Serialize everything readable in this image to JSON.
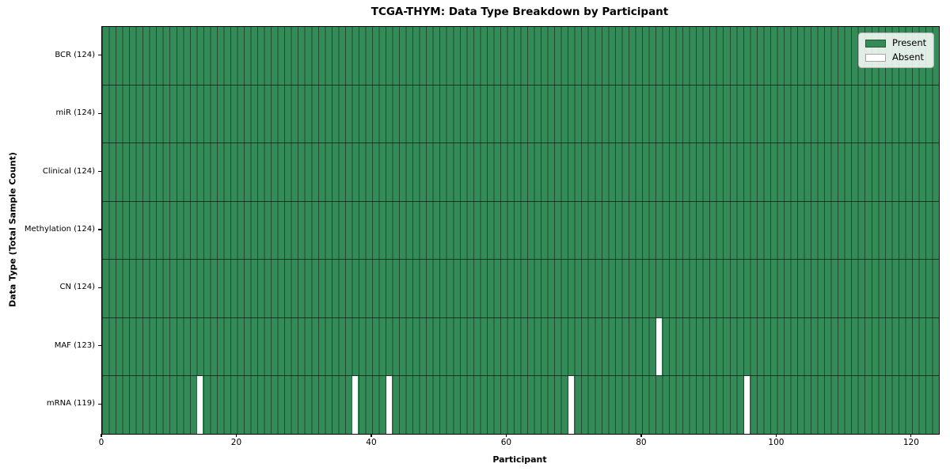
{
  "title": "TCGA-THYM: Data Type Breakdown by Participant",
  "chart_data": {
    "type": "heatmap",
    "title": "TCGA-THYM: Data Type Breakdown by Participant",
    "xlabel": "Participant",
    "ylabel": "Data Type (Total Sample Count)",
    "x_ticks": [
      0,
      20,
      40,
      60,
      80,
      100,
      120
    ],
    "x_range": [
      0,
      124
    ],
    "n_participants": 124,
    "grid": "cell-borders",
    "legend_position": "upper-right",
    "rows": [
      {
        "data_type": "BCR",
        "label": "BCR (124)",
        "present_count": 124,
        "absent_participants": []
      },
      {
        "data_type": "miR",
        "label": "miR (124)",
        "present_count": 124,
        "absent_participants": []
      },
      {
        "data_type": "Clinical",
        "label": "Clinical (124)",
        "present_count": 124,
        "absent_participants": []
      },
      {
        "data_type": "Methylation",
        "label": "Methylation (124)",
        "present_count": 124,
        "absent_participants": []
      },
      {
        "data_type": "CN",
        "label": "CN (124)",
        "present_count": 124,
        "absent_participants": []
      },
      {
        "data_type": "MAF",
        "label": "MAF (123)",
        "present_count": 123,
        "absent_participants": [
          82
        ]
      },
      {
        "data_type": "mRNA",
        "label": "mRNA (119)",
        "present_count": 119,
        "absent_participants": [
          14,
          37,
          42,
          69,
          95
        ]
      }
    ],
    "legend": [
      {
        "label": "Present",
        "color": "#348b58"
      },
      {
        "label": "Absent",
        "color": "#ffffff"
      }
    ],
    "colors": {
      "present": "#348b58",
      "absent": "#ffffff",
      "cell_edge": "rgba(0,0,0,0.45)",
      "row_border": "rgba(0,0,0,0.6)",
      "spine": "#000000",
      "figure_background": "#ffffff"
    }
  }
}
